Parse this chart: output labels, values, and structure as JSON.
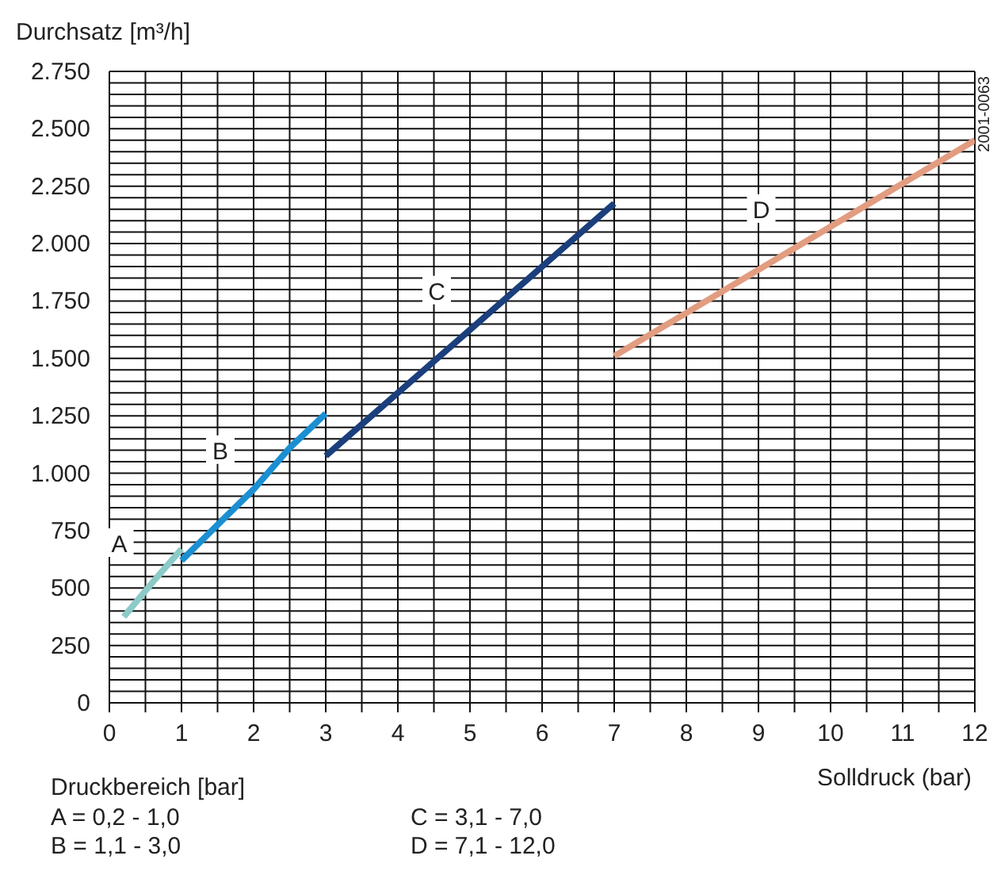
{
  "chart_data": {
    "type": "line",
    "xlabel": "Solldruck (bar)",
    "ylabel": "Durchsatz [m³/h]",
    "xlim": [
      0,
      12
    ],
    "ylim": [
      0,
      2750
    ],
    "xticks": [
      0,
      {
        "value": 0.5,
        "label": null
      },
      1,
      {
        "value": 1.5,
        "label": null
      },
      2,
      {
        "value": 2.5,
        "label": null
      },
      3,
      {
        "value": 3.5,
        "label": null
      },
      4,
      {
        "value": 4.5,
        "label": null
      },
      5,
      {
        "value": 5.5,
        "label": null
      },
      6,
      {
        "value": 6.5,
        "label": null
      },
      7,
      {
        "value": 7.5,
        "label": null
      },
      8,
      {
        "value": 8.5,
        "label": null
      },
      9,
      {
        "value": 9.5,
        "label": null
      },
      10,
      {
        "value": 10.5,
        "label": null
      },
      11,
      {
        "value": 11.5,
        "label": null
      },
      12
    ],
    "yticks": [
      0,
      {
        "value": 50,
        "label": null
      },
      {
        "value": 100,
        "label": null
      },
      {
        "value": 150,
        "label": null
      },
      {
        "value": 200,
        "label": null
      },
      250,
      {
        "value": 300,
        "label": null
      },
      {
        "value": 350,
        "label": null
      },
      {
        "value": 400,
        "label": null
      },
      {
        "value": 450,
        "label": null
      },
      500,
      {
        "value": 550,
        "label": null
      },
      {
        "value": 600,
        "label": null
      },
      {
        "value": 650,
        "label": null
      },
      {
        "value": 700,
        "label": null
      },
      750,
      {
        "value": 800,
        "label": null
      },
      {
        "value": 850,
        "label": null
      },
      {
        "value": 900,
        "label": null
      },
      {
        "value": 950,
        "label": null
      },
      {
        "value": 1000,
        "label": "1.000"
      },
      {
        "value": 1050,
        "label": null
      },
      {
        "value": 1100,
        "label": null
      },
      {
        "value": 1150,
        "label": null
      },
      {
        "value": 1200,
        "label": null
      },
      {
        "value": 1250,
        "label": "1.250"
      },
      {
        "value": 1300,
        "label": null
      },
      {
        "value": 1350,
        "label": null
      },
      {
        "value": 1400,
        "label": null
      },
      {
        "value": 1450,
        "label": null
      },
      {
        "value": 1500,
        "label": "1.500"
      },
      {
        "value": 1550,
        "label": null
      },
      {
        "value": 1600,
        "label": null
      },
      {
        "value": 1650,
        "label": null
      },
      {
        "value": 1700,
        "label": null
      },
      {
        "value": 1750,
        "label": "1.750"
      },
      {
        "value": 1800,
        "label": null
      },
      {
        "value": 1850,
        "label": null
      },
      {
        "value": 1900,
        "label": null
      },
      {
        "value": 1950,
        "label": null
      },
      {
        "value": 2000,
        "label": "2.000"
      },
      {
        "value": 2050,
        "label": null
      },
      {
        "value": 2100,
        "label": null
      },
      {
        "value": 2150,
        "label": null
      },
      {
        "value": 2200,
        "label": null
      },
      {
        "value": 2250,
        "label": "2.250"
      },
      {
        "value": 2300,
        "label": null
      },
      {
        "value": 2350,
        "label": null
      },
      {
        "value": 2400,
        "label": null
      },
      {
        "value": 2450,
        "label": null
      },
      {
        "value": 2500,
        "label": "2.500"
      },
      {
        "value": 2550,
        "label": null
      },
      {
        "value": 2600,
        "label": null
      },
      {
        "value": 2650,
        "label": null
      },
      {
        "value": 2700,
        "label": null
      },
      {
        "value": 2750,
        "label": "2.750"
      }
    ],
    "grid": true,
    "marker": "none",
    "line_style": "solid",
    "series": [
      {
        "name": "A",
        "color": "#8ccac8",
        "x": [
          0.2,
          0.6,
          1.0
        ],
        "values": [
          375,
          525,
          670
        ]
      },
      {
        "name": "B",
        "color": "#1b8fd2",
        "x": [
          1.0,
          1.5,
          2.0,
          2.5,
          3.0
        ],
        "values": [
          620,
          775,
          930,
          1110,
          1260
        ]
      },
      {
        "name": "C",
        "color": "#1b3f7c",
        "x": [
          3.0,
          5.0,
          7.0
        ],
        "values": [
          1075,
          1625,
          2175
        ]
      },
      {
        "name": "D",
        "color": "#e29c80",
        "x": [
          7.0,
          9.5,
          12.0
        ],
        "values": [
          1510,
          1980,
          2450
        ]
      }
    ],
    "annotations": [
      "Druckbereich [bar]",
      "A = 0,2 - 1,0",
      "B = 1,1 - 3,0",
      "C = 3,1 - 7,0",
      "D = 7,1 - 12,0",
      "2001-0063"
    ]
  }
}
